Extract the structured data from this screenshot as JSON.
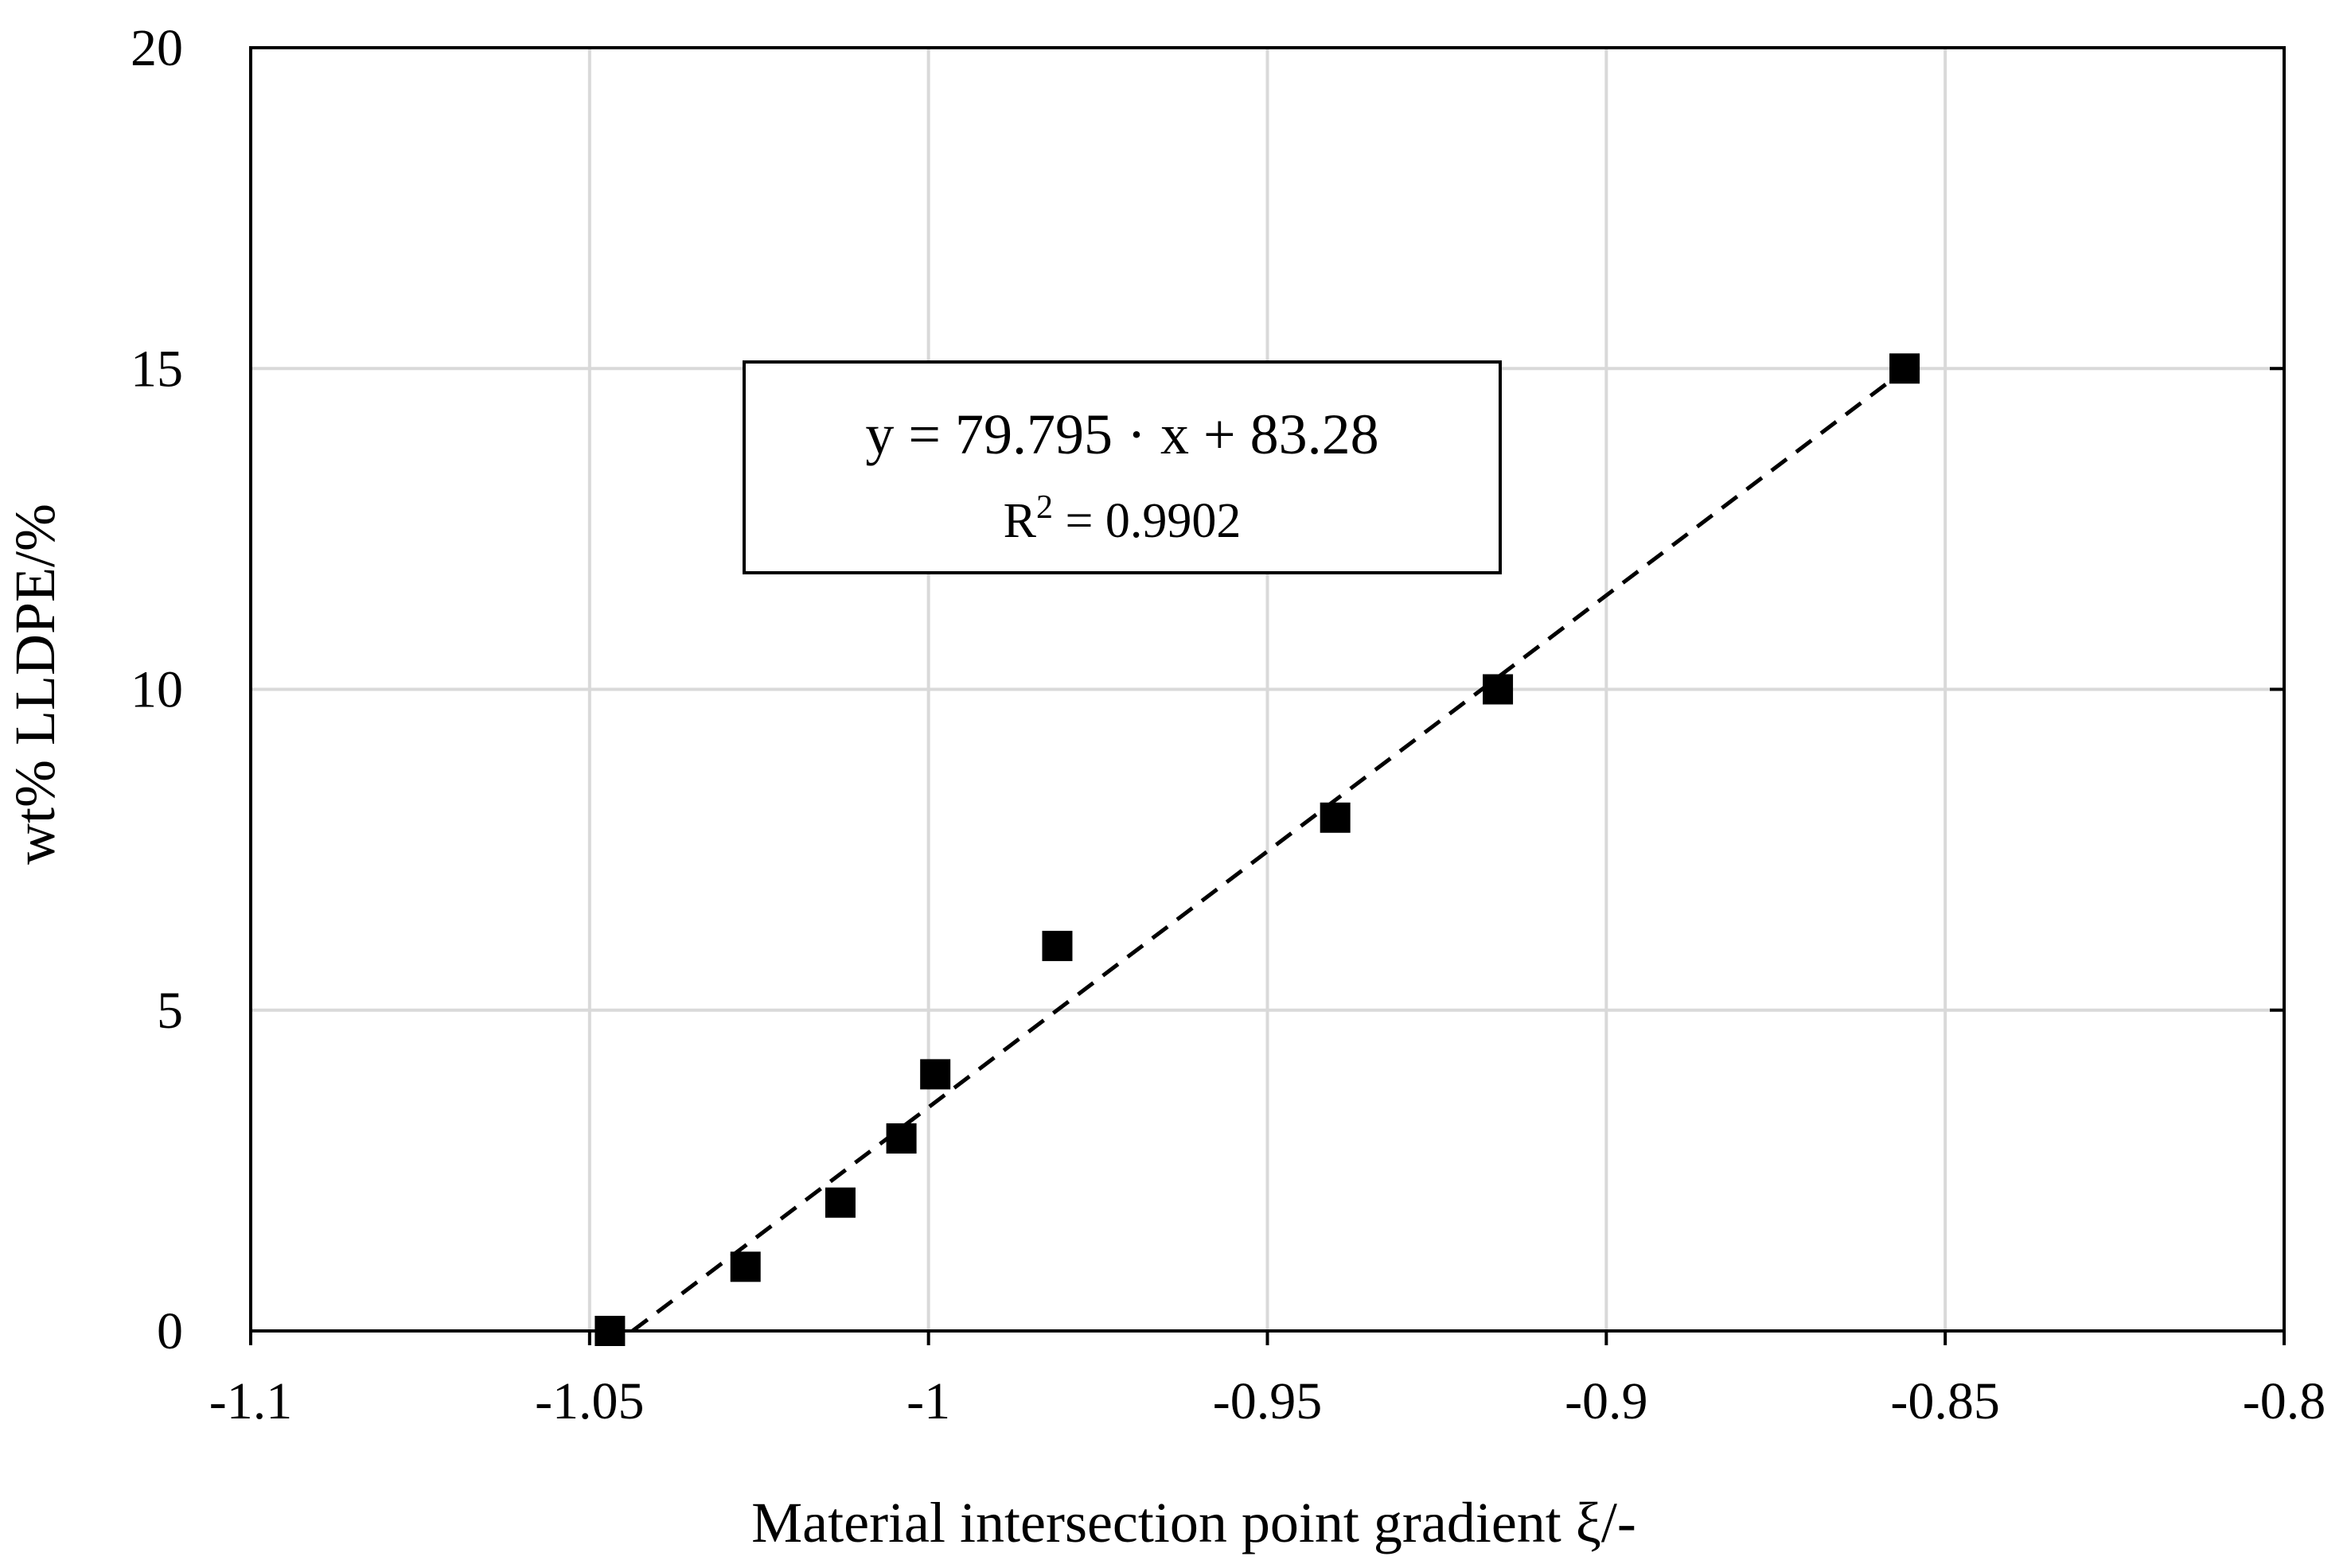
{
  "chart_data": {
    "type": "scatter",
    "xlabel": "Material intersection point gradient ξ/-",
    "ylabel": "wt% LLDPE/%",
    "xlim": [
      -1.1,
      -0.8
    ],
    "ylim": [
      0,
      20
    ],
    "x_ticks": [
      -1.1,
      -1.05,
      -1,
      -0.95,
      -0.9,
      -0.85,
      -0.8
    ],
    "x_tick_labels": [
      "-1.1",
      "-1.05",
      "-1",
      "-0.95",
      "-0.9",
      "-0.85",
      "-0.8"
    ],
    "y_ticks": [
      0,
      5,
      10,
      15,
      20
    ],
    "y_tick_labels": [
      "0",
      "5",
      "10",
      "15",
      "20"
    ],
    "grid": true,
    "series": [
      {
        "marker": "square",
        "color": "#000000",
        "x": [
          -1.047,
          -1.027,
          -1.013,
          -1.004,
          -0.999,
          -0.981,
          -0.94,
          -0.916,
          -0.856
        ],
        "y": [
          0,
          1,
          2,
          3,
          4,
          6,
          8,
          10,
          15
        ]
      }
    ],
    "trendline": {
      "style": "dashed",
      "color": "#000000",
      "slope": 79.795,
      "intercept": 83.28,
      "x_range": [
        -1.0437,
        -0.8556
      ]
    },
    "annotation": {
      "equation": "y = 79.795 · x + 83.28",
      "r_squared_prefix": "R",
      "r_squared_sup": "2",
      "r_squared_value": " = 0.9902"
    }
  }
}
